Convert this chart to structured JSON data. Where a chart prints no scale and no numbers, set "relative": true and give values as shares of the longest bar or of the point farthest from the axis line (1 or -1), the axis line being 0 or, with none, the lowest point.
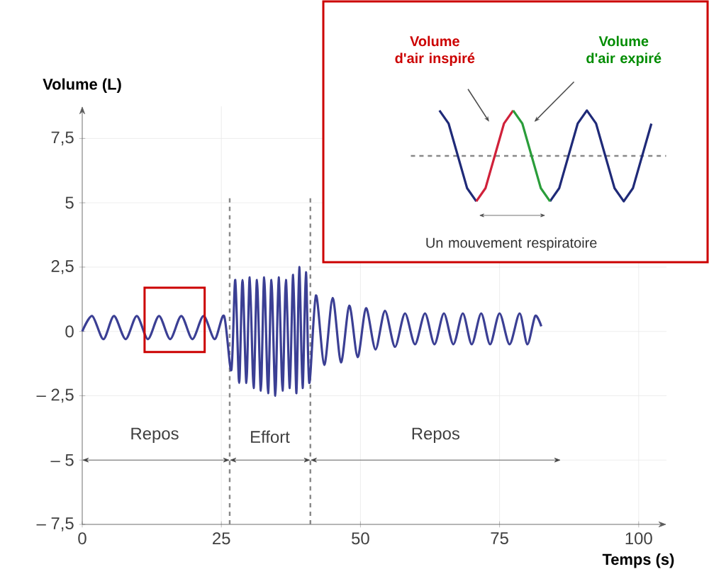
{
  "chart_data": [
    {
      "type": "line",
      "xlabel": "Temps (s)",
      "ylabel": "Volume (L)",
      "color": "#3b3f94",
      "x": [
        0,
        1.8,
        3.8,
        5.7,
        7.8,
        9.8,
        11.8,
        13.8,
        15.8,
        17.8,
        19.8,
        21.8,
        23.8,
        25.5,
        26.8,
        27.5,
        28.2,
        28.8,
        29.5,
        30.1,
        30.8,
        31.4,
        32.1,
        32.7,
        33.4,
        34.0,
        34.7,
        35.3,
        36.0,
        36.6,
        37.3,
        37.9,
        38.5,
        39.0,
        39.6,
        40.2,
        40.8,
        42,
        43.5,
        45,
        46.5,
        48,
        49.5,
        51,
        52.7,
        54.4,
        56.2,
        58,
        59.8,
        61.6,
        63.3,
        65,
        66.7,
        68.4,
        70,
        71.7,
        73.3,
        75,
        76.8,
        78.6,
        80,
        81.4,
        82.5
      ],
      "values": [
        0,
        0.6,
        -0.3,
        0.6,
        -0.3,
        0.6,
        -0.3,
        0.6,
        -0.3,
        0.6,
        -0.3,
        0.6,
        -0.3,
        0.6,
        -1.5,
        2.0,
        -2.0,
        2.0,
        -2.0,
        2.1,
        -2.2,
        2.0,
        -2.3,
        2.1,
        -2.4,
        2.0,
        -2.5,
        2.1,
        -2.3,
        2.0,
        -2.2,
        2.2,
        -2.4,
        2.5,
        -2.2,
        2.3,
        -2.0,
        1.4,
        -1.3,
        1.3,
        -1.2,
        1.0,
        -1.0,
        0.9,
        -0.7,
        0.8,
        -0.6,
        0.7,
        -0.5,
        0.7,
        -0.5,
        0.7,
        -0.5,
        0.7,
        -0.5,
        0.7,
        -0.5,
        0.7,
        -0.5,
        0.7,
        -0.5,
        0.6,
        0.2
      ],
      "xlim": [
        0,
        105
      ],
      "ylim": [
        -7.5,
        8.75
      ],
      "xticks": [
        0,
        25,
        50,
        75,
        100
      ],
      "yticks": [
        {
          "value": -7.5,
          "label": "– 7,5"
        },
        {
          "value": -5,
          "label": "– 5"
        },
        {
          "value": -2.5,
          "label": "– 2,5"
        },
        0,
        {
          "value": 2.5,
          "label": "2,5"
        },
        5,
        {
          "value": 7.5,
          "label": "7,5"
        }
      ],
      "grid": true,
      "ref_lines": [
        {
          "axis": "x",
          "value": 26.5,
          "line_style": "dashed",
          "color": "#888888"
        },
        {
          "axis": "x",
          "value": 41,
          "line_style": "dashed",
          "color": "#888888"
        }
      ],
      "annotations": [
        "Repos",
        "Effort",
        "Repos"
      ]
    },
    {
      "type": "line",
      "relative": true,
      "categories": [
        null,
        null,
        null,
        null,
        null,
        null,
        null,
        null,
        null,
        null,
        null,
        null,
        null,
        null,
        null,
        null,
        null,
        null,
        null,
        null,
        null,
        null,
        null,
        null
      ],
      "series": [
        {
          "color": "#1f2a78",
          "values": [
            1,
            0.71,
            0,
            -0.71,
            -1,
            null,
            null,
            null,
            null,
            null,
            null,
            null,
            -1,
            -0.71,
            0,
            0.71,
            1,
            0.71,
            0,
            -0.71,
            -1,
            -0.71,
            0,
            0.71
          ]
        },
        {
          "color": "#d0213a",
          "values": [
            null,
            null,
            null,
            null,
            -1,
            -0.71,
            0,
            0.71,
            1,
            null,
            null,
            null,
            null,
            null,
            null,
            null,
            null,
            null,
            null,
            null,
            null,
            null,
            null,
            null
          ]
        },
        {
          "color": "#2a9d3a",
          "values": [
            null,
            null,
            null,
            null,
            null,
            null,
            null,
            null,
            1,
            0.71,
            0,
            -0.71,
            -1,
            null,
            null,
            null,
            null,
            null,
            null,
            null,
            null,
            null,
            null,
            null
          ]
        }
      ],
      "ref_lines": [
        {
          "axis": "y",
          "value": 0,
          "line_style": "dashed",
          "color": "#888888"
        }
      ],
      "annotations": [
        "Volume d'air inspiré",
        "Volume d'air expiré",
        "Un mouvement respiratoire"
      ]
    }
  ]
}
